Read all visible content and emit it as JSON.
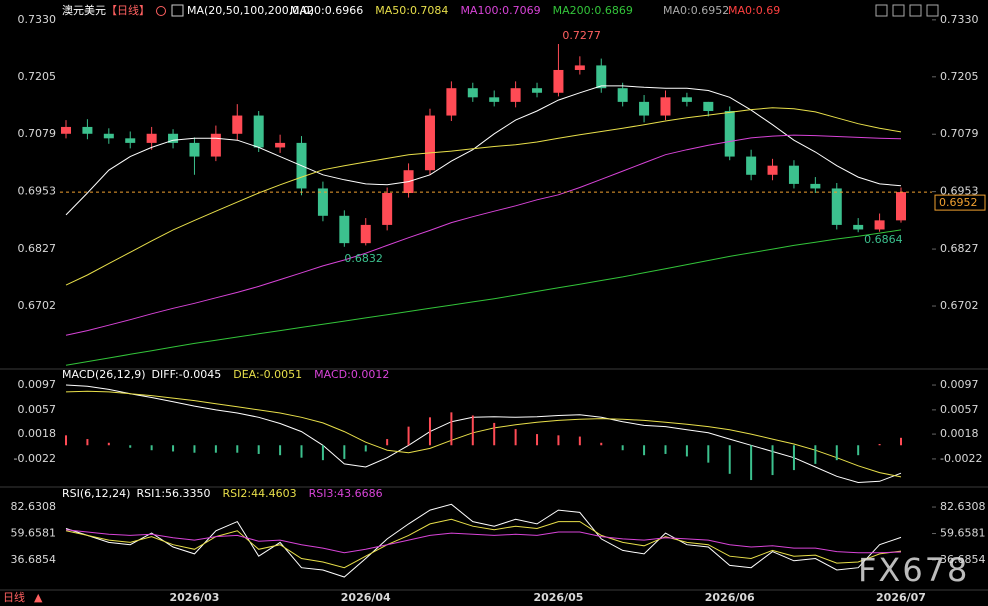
{
  "header": {
    "symbol": "澳元美元",
    "period": "【日线】",
    "ma_params": "MA(20,50,100,200,0,0)",
    "extra": [
      "MA0:0.6952",
      "MA0:0.69"
    ],
    "bottom_label": "日线",
    "watermark": "FX678"
  },
  "chart_data": [
    {
      "type": "candlestick",
      "categories": [
        null,
        null,
        null,
        null,
        null,
        null,
        "2026/03",
        null,
        null,
        null,
        null,
        null,
        null,
        null,
        "2026/04",
        null,
        null,
        null,
        null,
        null,
        null,
        null,
        null,
        "2026/05",
        null,
        null,
        null,
        null,
        null,
        null,
        null,
        "2026/06",
        null,
        null,
        null,
        null,
        null,
        null,
        null,
        "2026/07"
      ],
      "open": [
        0.708,
        0.7095,
        0.708,
        0.707,
        0.706,
        0.708,
        0.706,
        0.703,
        0.708,
        0.712,
        0.705,
        0.706,
        0.696,
        0.69,
        0.684,
        0.688,
        0.695,
        0.7,
        0.712,
        0.718,
        0.716,
        0.715,
        0.718,
        0.717,
        0.722,
        0.723,
        0.718,
        0.715,
        0.712,
        0.716,
        0.715,
        0.713,
        0.703,
        0.699,
        0.701,
        0.697,
        0.696,
        0.688,
        0.687,
        0.689
      ],
      "high": [
        0.711,
        0.7112,
        0.7092,
        0.7085,
        0.7095,
        0.709,
        0.7072,
        0.7098,
        0.7145,
        0.713,
        0.7078,
        0.7075,
        0.6975,
        0.6912,
        0.6895,
        0.6962,
        0.7015,
        0.7135,
        0.7195,
        0.7192,
        0.7175,
        0.7195,
        0.7192,
        0.7277,
        0.725,
        0.7245,
        0.7192,
        0.7165,
        0.7175,
        0.717,
        0.715,
        0.714,
        0.7045,
        0.7025,
        0.7022,
        0.6985,
        0.6972,
        0.6895,
        0.6905,
        0.6962
      ],
      "low": [
        0.707,
        0.7068,
        0.7058,
        0.7048,
        0.7045,
        0.7048,
        0.699,
        0.702,
        0.7065,
        0.704,
        0.7038,
        0.6945,
        0.6888,
        0.6832,
        0.6835,
        0.6868,
        0.694,
        0.699,
        0.7108,
        0.715,
        0.714,
        0.7138,
        0.716,
        0.7162,
        0.721,
        0.717,
        0.714,
        0.7105,
        0.711,
        0.714,
        0.7118,
        0.7022,
        0.6978,
        0.6978,
        0.696,
        0.695,
        0.687,
        0.6864,
        0.6865,
        0.6885
      ],
      "close": [
        0.7095,
        0.708,
        0.707,
        0.706,
        0.708,
        0.706,
        0.703,
        0.708,
        0.712,
        0.705,
        0.706,
        0.696,
        0.69,
        0.684,
        0.688,
        0.695,
        0.7,
        0.712,
        0.718,
        0.716,
        0.715,
        0.718,
        0.717,
        0.722,
        0.723,
        0.718,
        0.715,
        0.712,
        0.716,
        0.715,
        0.713,
        0.703,
        0.699,
        0.701,
        0.697,
        0.696,
        0.688,
        0.687,
        0.689,
        0.6952
      ],
      "up_color": "#ff4b55",
      "down_color": "#3cc18e",
      "last_color": "#f0a030",
      "ylim": [
        0.6566,
        0.7356
      ],
      "yticks": [
        {
          "value": 0.733,
          "label": "0.7330"
        },
        0.7205,
        0.7079,
        0.6953,
        0.6827,
        0.6702
      ],
      "series": [
        {
          "name": "MA20:0.6966",
          "color": "#ffffff",
          "values": [
            0.6902,
            0.695,
            0.7,
            0.703,
            0.705,
            0.7066,
            0.707,
            0.707,
            0.7066,
            0.705,
            0.703,
            0.701,
            0.699,
            0.6979,
            0.697,
            0.6968,
            0.6975,
            0.699,
            0.702,
            0.7045,
            0.708,
            0.711,
            0.713,
            0.7154,
            0.717,
            0.7185,
            0.7185,
            0.7182,
            0.718,
            0.718,
            0.7175,
            0.716,
            0.7132,
            0.71,
            0.7066,
            0.704,
            0.701,
            0.6985,
            0.697,
            0.6966
          ]
        },
        {
          "name": "MA50:0.7084",
          "color": "#e8df4a",
          "values": [
            0.6748,
            0.677,
            0.6795,
            0.682,
            0.6845,
            0.6869,
            0.689,
            0.691,
            0.693,
            0.695,
            0.6968,
            0.6985,
            0.7001,
            0.701,
            0.7018,
            0.7026,
            0.7034,
            0.7038,
            0.7042,
            0.7047,
            0.7052,
            0.7056,
            0.7062,
            0.707,
            0.7078,
            0.7085,
            0.7092,
            0.71,
            0.7108,
            0.7115,
            0.7121,
            0.7127,
            0.7133,
            0.7137,
            0.7135,
            0.7128,
            0.7115,
            0.7102,
            0.7092,
            0.7084
          ]
        },
        {
          "name": "MA100:0.7069",
          "color": "#d844d8",
          "values": [
            0.6638,
            0.6648,
            0.666,
            0.6672,
            0.6685,
            0.6697,
            0.6708,
            0.672,
            0.6732,
            0.6745,
            0.676,
            0.6775,
            0.679,
            0.6803,
            0.6818,
            0.6835,
            0.6852,
            0.6868,
            0.6885,
            0.6898,
            0.691,
            0.6922,
            0.6935,
            0.6946,
            0.6962,
            0.698,
            0.6998,
            0.7016,
            0.7034,
            0.7045,
            0.7055,
            0.7063,
            0.7071,
            0.7075,
            0.7077,
            0.7076,
            0.7074,
            0.7072,
            0.707,
            0.7069
          ]
        },
        {
          "name": "MA200:0.6869",
          "color": "#33c43a",
          "values": [
            0.6572,
            0.658,
            0.6588,
            0.6596,
            0.6604,
            0.6612,
            0.662,
            0.6627,
            0.6634,
            0.6641,
            0.6648,
            0.6655,
            0.6662,
            0.6669,
            0.6676,
            0.6683,
            0.669,
            0.6697,
            0.6704,
            0.6711,
            0.6718,
            0.6726,
            0.6734,
            0.6742,
            0.675,
            0.6758,
            0.6766,
            0.6775,
            0.6784,
            0.6793,
            0.6802,
            0.6811,
            0.6819,
            0.6827,
            0.6835,
            0.6842,
            0.6849,
            0.6855,
            0.6862,
            0.6869
          ]
        }
      ]
    },
    {
      "type": "macd",
      "title": "MACD(26,12,9)",
      "ylim": [
        -0.0064,
        0.0118
      ],
      "yticks": [
        0.0097,
        0.0057,
        0.0018,
        -0.0022
      ],
      "series": [
        {
          "name": "DIFF:-0.0045",
          "color": "#ffffff",
          "values": [
            0.0097,
            0.0095,
            0.009,
            0.0083,
            0.0077,
            0.007,
            0.0063,
            0.0057,
            0.0052,
            0.0045,
            0.0035,
            0.0022,
            0.0,
            -0.003,
            -0.0035,
            -0.002,
            0.0,
            0.0022,
            0.0038,
            0.0045,
            0.0046,
            0.0045,
            0.0046,
            0.0048,
            0.0049,
            0.0045,
            0.0038,
            0.0032,
            0.003,
            0.0025,
            0.002,
            0.001,
            0.0,
            -0.001,
            -0.002,
            -0.0035,
            -0.005,
            -0.006,
            -0.0058,
            -0.0045
          ]
        },
        {
          "name": "DEA:-0.0051",
          "color": "#e8df4a",
          "values": [
            0.0086,
            0.0087,
            0.0086,
            0.0083,
            0.008,
            0.0076,
            0.0072,
            0.0067,
            0.0062,
            0.0057,
            0.0052,
            0.0045,
            0.0036,
            0.0022,
            0.0005,
            -0.0008,
            -0.0012,
            -0.0005,
            0.0008,
            0.002,
            0.0028,
            0.0033,
            0.0037,
            0.004,
            0.0042,
            0.0043,
            0.0042,
            0.004,
            0.0037,
            0.0034,
            0.003,
            0.0025,
            0.0018,
            0.001,
            0.0002,
            -0.0008,
            -0.002,
            -0.0033,
            -0.0044,
            -0.0051
          ]
        },
        {
          "name": "MACD:0.0012",
          "color": "#d844d8",
          "type": "bar",
          "values": [
            0.0016,
            0.001,
            0.0004,
            -0.0004,
            -0.0008,
            -0.001,
            -0.0012,
            -0.0012,
            -0.0012,
            -0.0014,
            -0.0016,
            -0.002,
            -0.0024,
            -0.0022,
            -0.001,
            0.001,
            0.003,
            0.0045,
            0.0053,
            0.0048,
            0.0036,
            0.0026,
            0.0018,
            0.0016,
            0.0014,
            0.0004,
            -0.0008,
            -0.0016,
            -0.0014,
            -0.0018,
            -0.0028,
            -0.0046,
            -0.0056,
            -0.0048,
            -0.004,
            -0.003,
            -0.0024,
            -0.0016,
            0.0002,
            0.0012
          ]
        }
      ]
    },
    {
      "type": "line",
      "title": "RSI(6,12,24)",
      "ylim": [
        10.7,
        97.4
      ],
      "yticks": [
        82.6308,
        59.6581,
        36.6854
      ],
      "series": [
        {
          "name": "RSI1:56.3350",
          "color": "#ffffff",
          "values": [
            64,
            58,
            52,
            50,
            60,
            48,
            42,
            62,
            70,
            40,
            52,
            30,
            28,
            22,
            38,
            55,
            68,
            80,
            85,
            70,
            66,
            72,
            68,
            80,
            78,
            55,
            45,
            42,
            60,
            50,
            48,
            32,
            30,
            44,
            36,
            38,
            28,
            30,
            50,
            56.335
          ]
        },
        {
          "name": "RSI2:44.4603",
          "color": "#e8df4a",
          "values": [
            62,
            58,
            54,
            52,
            57,
            50,
            46,
            57,
            62,
            46,
            50,
            38,
            35,
            30,
            40,
            50,
            58,
            68,
            72,
            66,
            63,
            66,
            64,
            70,
            70,
            58,
            52,
            49,
            57,
            52,
            50,
            40,
            38,
            45,
            40,
            41,
            34,
            35,
            42,
            44.4603
          ]
        },
        {
          "name": "RSI3:43.6686",
          "color": "#d844d8",
          "values": [
            63,
            61,
            59,
            58,
            59,
            56,
            54,
            57,
            58,
            53,
            54,
            50,
            47,
            43,
            46,
            50,
            54,
            58,
            60,
            59,
            58,
            59,
            58,
            61,
            61,
            57,
            55,
            54,
            56,
            55,
            54,
            50,
            48,
            49,
            47,
            47,
            44,
            43,
            43,
            43.6686
          ]
        }
      ]
    }
  ]
}
